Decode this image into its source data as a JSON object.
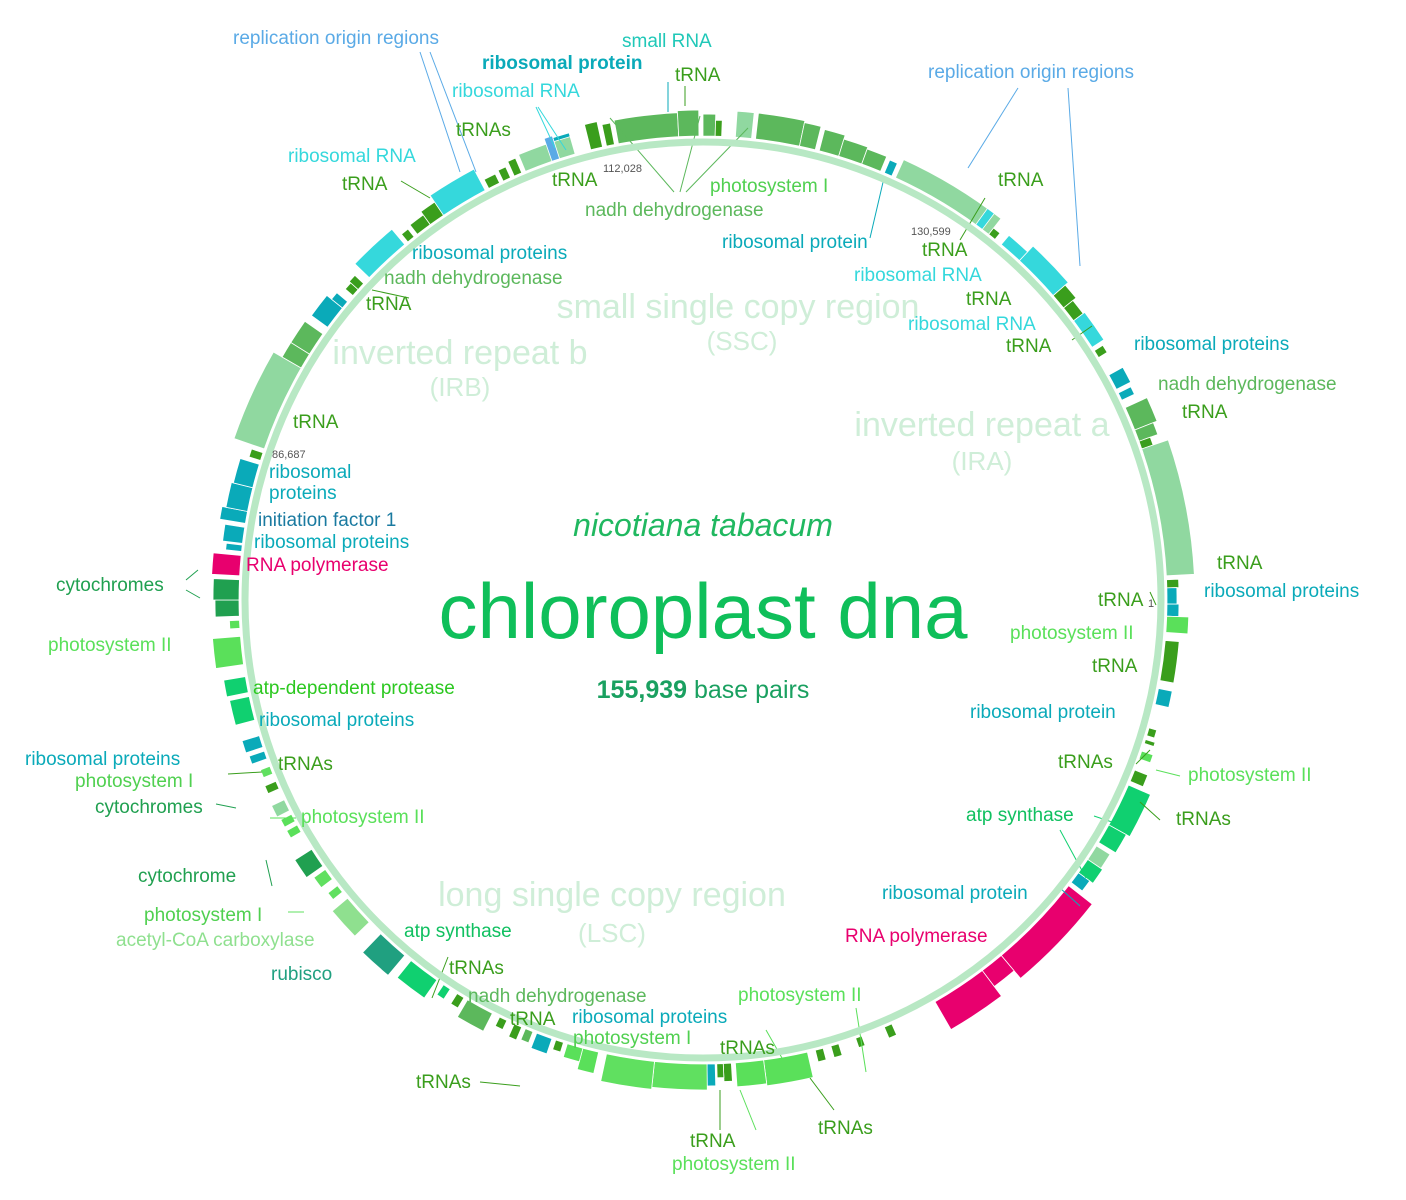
{
  "title": "chloroplast dna",
  "species": "nicotiana tabacum",
  "size": {
    "value": "155,939",
    "unit": "base pairs"
  },
  "colors": {
    "title": "#0fbf5a",
    "rna_polymerase": "#e8006e",
    "ribosomal_protein": "#0aaab9",
    "ribosomal_rna": "#35d8dc",
    "trna": "#3a9e1c",
    "nadh": "#5cb85c",
    "photosystem_i": "#60e060",
    "photosystem_ii": "#5ae05a",
    "atp_synthase": "#10d070",
    "cytochrome": "#20a050",
    "rubisco": "#20a080",
    "acetyl": "#8fe08f",
    "replication": "#5aaae6",
    "region": "#cfeed8",
    "ring": "#b8e8c4",
    "inverted_block": "#90d8a0"
  },
  "regions": [
    {
      "name": "small single copy region",
      "abbr": "(SSC)"
    },
    {
      "name": "inverted repeat a",
      "abbr": "(IRA)"
    },
    {
      "name": "inverted repeat b",
      "abbr": "(IRB)"
    },
    {
      "name": "long single copy region",
      "abbr": "(LSC)"
    }
  ],
  "positions": [
    "112,028",
    "130,599",
    "86,687",
    "1"
  ],
  "labels": [
    {
      "text": "replication origin regions",
      "cat": "replication"
    },
    {
      "text": "small RNA",
      "cat": "ribosomal_rna"
    },
    {
      "text": "ribosomal protein",
      "cat": "ribosomal_protein"
    },
    {
      "text": "tRNA",
      "cat": "trna"
    },
    {
      "text": "ribosomal RNA",
      "cat": "ribosomal_rna"
    },
    {
      "text": "replication origin regions",
      "cat": "replication"
    },
    {
      "text": "tRNAs",
      "cat": "trna"
    },
    {
      "text": "ribosomal RNA",
      "cat": "ribosomal_rna"
    },
    {
      "text": "tRNA",
      "cat": "trna"
    },
    {
      "text": "tRNA",
      "cat": "trna"
    },
    {
      "text": "photosystem I",
      "cat": "photosystem_i"
    },
    {
      "text": "nadh dehydrogenase",
      "cat": "nadh"
    },
    {
      "text": "tRNA",
      "cat": "trna"
    },
    {
      "text": "ribosomal protein",
      "cat": "ribosomal_protein"
    },
    {
      "text": "tRNA",
      "cat": "trna"
    },
    {
      "text": "ribosomal proteins",
      "cat": "ribosomal_protein"
    },
    {
      "text": "nadh dehydrogenase",
      "cat": "nadh"
    },
    {
      "text": "ribosomal RNA",
      "cat": "ribosomal_rna"
    },
    {
      "text": "tRNA",
      "cat": "trna"
    },
    {
      "text": "tRNA",
      "cat": "trna"
    },
    {
      "text": "ribosomal RNA",
      "cat": "ribosomal_rna"
    },
    {
      "text": "tRNA",
      "cat": "trna"
    },
    {
      "text": "ribosomal proteins",
      "cat": "ribosomal_protein"
    },
    {
      "text": "nadh dehydrogenase",
      "cat": "nadh"
    },
    {
      "text": "tRNA",
      "cat": "trna"
    },
    {
      "text": "tRNA",
      "cat": "trna"
    },
    {
      "text": "ribosomal",
      "cat": "ribosomal_protein"
    },
    {
      "text": "proteins",
      "cat": "ribosomal_protein"
    },
    {
      "text": "initiation factor 1",
      "cat": "initiation"
    },
    {
      "text": "ribosomal proteins",
      "cat": "ribosomal_protein"
    },
    {
      "text": "RNA polymerase",
      "cat": "rna_polymerase"
    },
    {
      "text": "cytochromes",
      "cat": "cytochrome"
    },
    {
      "text": "photosystem II",
      "cat": "photosystem_ii"
    },
    {
      "text": "atp-dependent protease",
      "cat": "protease"
    },
    {
      "text": "ribosomal proteins",
      "cat": "ribosomal_protein"
    },
    {
      "text": "ribosomal proteins",
      "cat": "ribosomal_protein"
    },
    {
      "text": "tRNAs",
      "cat": "trna"
    },
    {
      "text": "photosystem I",
      "cat": "photosystem_i"
    },
    {
      "text": "cytochromes",
      "cat": "cytochrome"
    },
    {
      "text": "photosystem II",
      "cat": "photosystem_ii"
    },
    {
      "text": "cytochrome",
      "cat": "cytochrome"
    },
    {
      "text": "photosystem I",
      "cat": "photosystem_i"
    },
    {
      "text": "acetyl-CoA carboxylase",
      "cat": "acetyl"
    },
    {
      "text": "rubisco",
      "cat": "rubisco"
    },
    {
      "text": "atp synthase",
      "cat": "atp_synthase"
    },
    {
      "text": "tRNAs",
      "cat": "trna"
    },
    {
      "text": "nadh dehydrogenase",
      "cat": "nadh"
    },
    {
      "text": "tRNA",
      "cat": "trna"
    },
    {
      "text": "ribosomal proteins",
      "cat": "ribosomal_protein"
    },
    {
      "text": "photosystem I",
      "cat": "photosystem_i"
    },
    {
      "text": "tRNAs",
      "cat": "trna"
    },
    {
      "text": "photosystem II",
      "cat": "photosystem_ii"
    },
    {
      "text": "tRNAs",
      "cat": "trna"
    },
    {
      "text": "tRNA",
      "cat": "trna"
    },
    {
      "text": "photosystem II",
      "cat": "photosystem_ii"
    },
    {
      "text": "tRNAs",
      "cat": "trna"
    },
    {
      "text": "tRNA",
      "cat": "trna"
    },
    {
      "text": "ribosomal proteins",
      "cat": "ribosomal_protein"
    },
    {
      "text": "tRNA",
      "cat": "trna"
    },
    {
      "text": "photosystem II",
      "cat": "photosystem_ii"
    },
    {
      "text": "tRNA",
      "cat": "trna"
    },
    {
      "text": "ribosomal protein",
      "cat": "ribosomal_protein"
    },
    {
      "text": "tRNAs",
      "cat": "trna"
    },
    {
      "text": "photosystem II",
      "cat": "photosystem_ii"
    },
    {
      "text": "atp synthase",
      "cat": "atp_synthase"
    },
    {
      "text": "tRNAs",
      "cat": "trna"
    },
    {
      "text": "ribosomal protein",
      "cat": "ribosomal_protein"
    },
    {
      "text": "RNA polymerase",
      "cat": "rna_polymerase"
    }
  ]
}
